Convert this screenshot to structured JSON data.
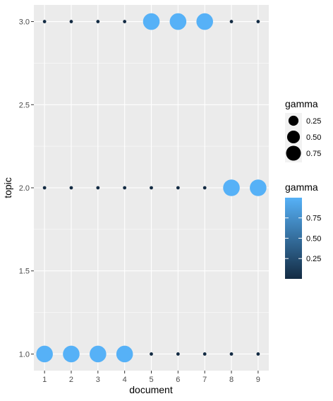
{
  "chart_data": {
    "type": "scatter",
    "xlabel": "document",
    "ylabel": "topic",
    "x_ticks": [
      "1",
      "2",
      "3",
      "4",
      "5",
      "6",
      "7",
      "8",
      "9"
    ],
    "y_ticks": [
      "1.0",
      "1.5",
      "2.0",
      "2.5",
      "3.0"
    ],
    "xlim": [
      0.6,
      9.4
    ],
    "ylim": [
      0.9,
      3.1
    ],
    "grid": true,
    "background": "#ebebeb",
    "points": [
      {
        "document": 1,
        "topic": 1,
        "gamma": 0.999
      },
      {
        "document": 2,
        "topic": 1,
        "gamma": 0.999
      },
      {
        "document": 3,
        "topic": 1,
        "gamma": 0.999
      },
      {
        "document": 4,
        "topic": 1,
        "gamma": 0.999
      },
      {
        "document": 5,
        "topic": 1,
        "gamma": 0.0
      },
      {
        "document": 6,
        "topic": 1,
        "gamma": 0.0
      },
      {
        "document": 7,
        "topic": 1,
        "gamma": 0.0
      },
      {
        "document": 8,
        "topic": 1,
        "gamma": 0.0
      },
      {
        "document": 9,
        "topic": 1,
        "gamma": 0.0
      },
      {
        "document": 1,
        "topic": 2,
        "gamma": 0.0
      },
      {
        "document": 2,
        "topic": 2,
        "gamma": 0.0
      },
      {
        "document": 3,
        "topic": 2,
        "gamma": 0.0
      },
      {
        "document": 4,
        "topic": 2,
        "gamma": 0.0
      },
      {
        "document": 5,
        "topic": 2,
        "gamma": 0.0
      },
      {
        "document": 6,
        "topic": 2,
        "gamma": 0.0
      },
      {
        "document": 7,
        "topic": 2,
        "gamma": 0.0
      },
      {
        "document": 8,
        "topic": 2,
        "gamma": 0.999
      },
      {
        "document": 9,
        "topic": 2,
        "gamma": 0.999
      },
      {
        "document": 1,
        "topic": 3,
        "gamma": 0.0
      },
      {
        "document": 2,
        "topic": 3,
        "gamma": 0.0
      },
      {
        "document": 3,
        "topic": 3,
        "gamma": 0.0
      },
      {
        "document": 4,
        "topic": 3,
        "gamma": 0.0
      },
      {
        "document": 5,
        "topic": 3,
        "gamma": 0.999
      },
      {
        "document": 6,
        "topic": 3,
        "gamma": 0.999
      },
      {
        "document": 7,
        "topic": 3,
        "gamma": 0.999
      },
      {
        "document": 8,
        "topic": 3,
        "gamma": 0.0
      },
      {
        "document": 9,
        "topic": 3,
        "gamma": 0.0
      }
    ],
    "legend_size": {
      "title": "gamma",
      "placement": "right",
      "entries": [
        {
          "label": "0.25",
          "value": 0.25
        },
        {
          "label": "0.50",
          "value": 0.5
        },
        {
          "label": "0.75",
          "value": 0.75
        }
      ]
    },
    "legend_color": {
      "title": "gamma",
      "placement": "right",
      "low_color": "#132b43",
      "high_color": "#56b1f7",
      "labels": [
        {
          "label": "0.75",
          "value": 0.75
        },
        {
          "label": "0.50",
          "value": 0.5
        },
        {
          "label": "0.25",
          "value": 0.25
        }
      ]
    }
  }
}
